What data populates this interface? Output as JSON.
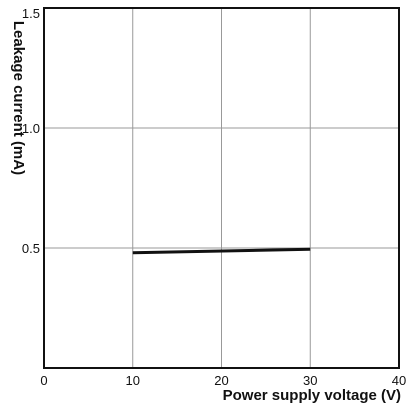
{
  "chart_data": {
    "type": "line",
    "xlabel": "Power supply voltage (V)",
    "ylabel": "Leakage current (mA)",
    "xlim": [
      0,
      40
    ],
    "ylim": [
      0,
      1.5
    ],
    "xticks": [
      0,
      10,
      20,
      30,
      40
    ],
    "yticks": [
      0.5,
      1.0,
      1.5
    ],
    "xtick_labels": [
      "0",
      "10",
      "20",
      "30",
      "40"
    ],
    "ytick_labels": [
      "0.5",
      "1.0",
      "1.5"
    ],
    "grid": true,
    "series": [
      {
        "x": [
          10,
          30
        ],
        "y": [
          0.48,
          0.495
        ]
      }
    ],
    "colors": {
      "line": "#111111",
      "grid": "#999999",
      "axis": "#111111"
    }
  }
}
